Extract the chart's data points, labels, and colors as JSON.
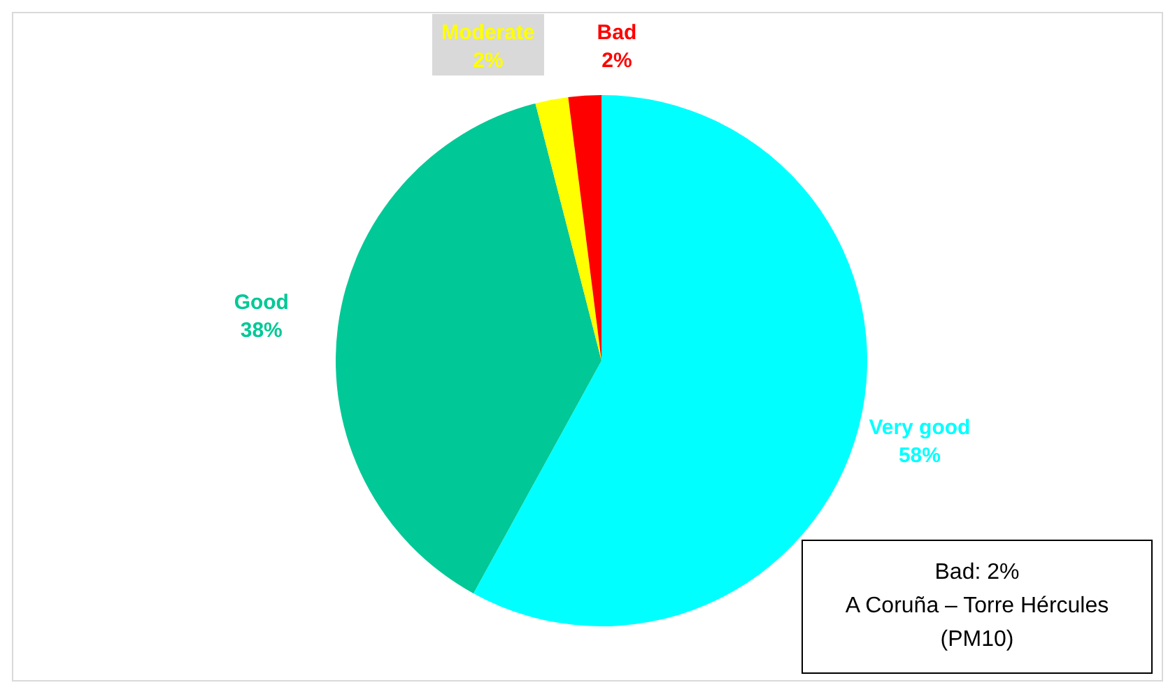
{
  "chart_data": {
    "type": "pie",
    "categories": [
      "Very good",
      "Good",
      "Moderate",
      "Bad"
    ],
    "values": [
      58,
      38,
      2,
      2
    ],
    "value_labels": [
      "58%",
      "38%",
      "2%",
      "2%"
    ],
    "colors": [
      "#00ffff",
      "#00c896",
      "#ffff00",
      "#ff0000"
    ],
    "annotations": [
      "Bad: 2%\nA Coruña – Torre Hércules\n(PM10)"
    ]
  }
}
